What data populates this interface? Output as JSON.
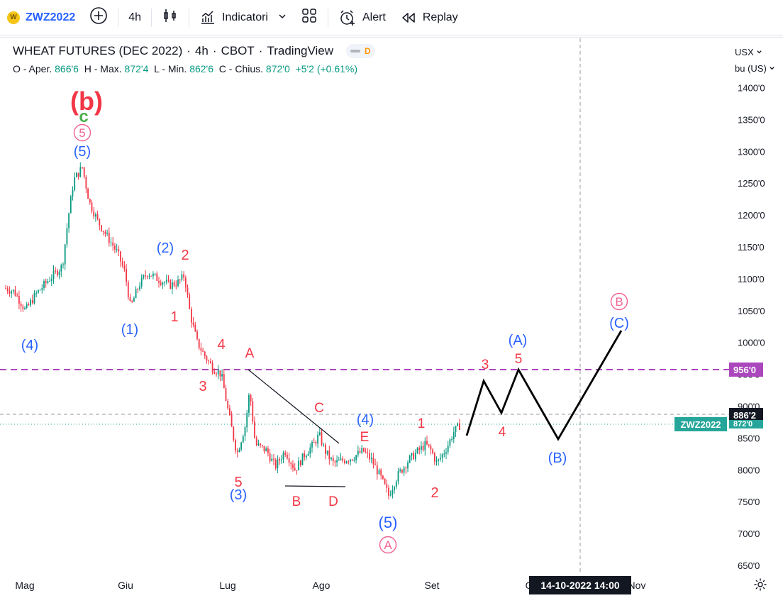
{
  "toolbar": {
    "symbol": "ZWZ2022",
    "symbol_badge": "W",
    "interval": "4h",
    "indicators_label": "Indicatori",
    "alert_label": "Alert",
    "replay_label": "Replay"
  },
  "legend": {
    "title": "WHEAT FUTURES (DEC 2022)",
    "interval": "4h",
    "exchange": "CBOT",
    "source": "TradingView",
    "session_badge": "D",
    "open_label": "O - Aper.",
    "open": "866'6",
    "high_label": "H - Max.",
    "high": "872'4",
    "low_label": "L - Min.",
    "low": "862'6",
    "close_label": "C - Chius.",
    "close": "872'0",
    "change": "+5'2 (+0.61%)"
  },
  "price_axis": {
    "currency": "USX",
    "unit": "bu (US)",
    "ticks": [
      "1400'0",
      "1350'0",
      "1300'0",
      "1250'0",
      "1200'0",
      "1150'0",
      "1100'0",
      "1050'0",
      "1000'0",
      "950'0",
      "900'0",
      "850'0",
      "800'0",
      "750'0",
      "700'0",
      "650'0"
    ],
    "tag_level": "956'0",
    "tag_crosshair": "886'2",
    "tag_symbol": "ZWZ2022",
    "tag_last": "872'0"
  },
  "time_axis": {
    "ticks": [
      "Mag",
      "Giu",
      "Lug",
      "Ago",
      "Set",
      "Ott",
      "Nov"
    ],
    "crosshair_label": "14-10-2022  14:00"
  },
  "colors": {
    "up": "#089981",
    "down": "#f23645",
    "wave_red": "#f23645",
    "wave_blue": "#2962ff",
    "wave_pink": "#f06292",
    "wave_green": "#4caf50",
    "level_line": "#ab47bc",
    "last_price": "#26a69a"
  },
  "waves": {
    "b": "(b)",
    "c": "c",
    "circ5": "5",
    "w5top": "(5)",
    "w2": "(2)",
    "r2": "2",
    "w1": "(1)",
    "r1": "1",
    "w4left": "(4)",
    "r4": "4",
    "r3": "3",
    "A": "A",
    "C": "C",
    "w4mid": "(4)",
    "E": "E",
    "r5": "5",
    "w3": "(3)",
    "B": "B",
    "D": "D",
    "w5": "(5)",
    "circA": "A",
    "s1": "1",
    "s2": "2",
    "s3": "3",
    "s5": "5",
    "s4": "4",
    "projA": "(A)",
    "projB": "(B)",
    "projC": "(C)",
    "circB": "B"
  }
}
